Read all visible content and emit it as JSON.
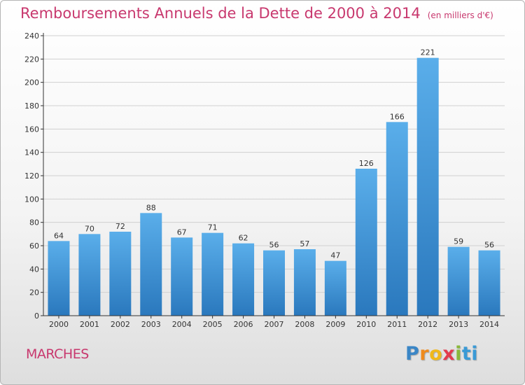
{
  "header": {
    "title": "Remboursements Annuels de la Dette de 2000 à 2014",
    "unit": "(en milliers d'€)"
  },
  "footer": {
    "commune": "MARCHES",
    "logo_letters": [
      "P",
      "r",
      "o",
      "x",
      "i",
      "ti"
    ]
  },
  "colors": {
    "title": "#c8386e",
    "bar_top": "#5aaeea",
    "bar_bottom": "#2a78bd",
    "axis": "#333333",
    "grid": "#d0d0d0"
  },
  "chart_data": {
    "type": "bar",
    "categories": [
      "2000",
      "2001",
      "2002",
      "2003",
      "2004",
      "2005",
      "2006",
      "2007",
      "2008",
      "2009",
      "2010",
      "2011",
      "2012",
      "2013",
      "2014"
    ],
    "values": [
      64,
      70,
      72,
      88,
      67,
      71,
      62,
      56,
      57,
      47,
      126,
      166,
      221,
      59,
      56
    ],
    "title": "Remboursements Annuels de la Dette de 2000 à 2014",
    "ylim": [
      0,
      240
    ],
    "yticks": [
      0,
      20,
      40,
      60,
      80,
      100,
      120,
      140,
      160,
      180,
      200,
      220,
      240
    ],
    "grid": true,
    "data_labels": true
  }
}
